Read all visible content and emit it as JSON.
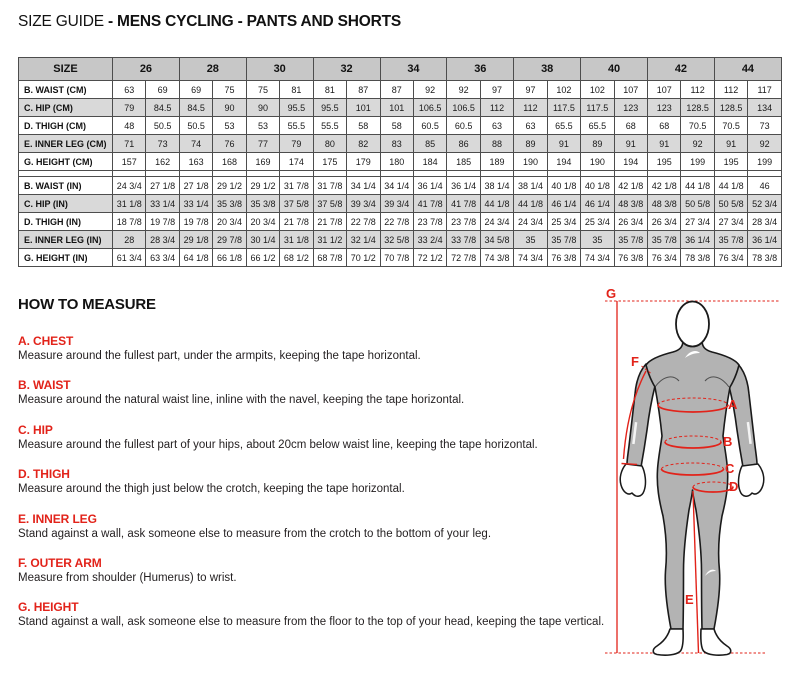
{
  "title": {
    "prefix": "SIZE GUIDE",
    "rest": " - MENS CYCLING - PANTS AND SHORTS"
  },
  "table": {
    "size_header_label": "SIZE",
    "sizes": [
      "26",
      "28",
      "30",
      "32",
      "34",
      "36",
      "38",
      "40",
      "42",
      "44"
    ],
    "cm_rows": [
      {
        "label": "B. WAIST (CM)",
        "values": [
          "63",
          "69",
          "69",
          "75",
          "75",
          "81",
          "81",
          "87",
          "87",
          "92",
          "92",
          "97",
          "97",
          "102",
          "102",
          "107",
          "107",
          "112",
          "112",
          "117"
        ]
      },
      {
        "label": "C. HIP (CM)",
        "values": [
          "79",
          "84.5",
          "84.5",
          "90",
          "90",
          "95.5",
          "95.5",
          "101",
          "101",
          "106.5",
          "106.5",
          "112",
          "112",
          "117.5",
          "117.5",
          "123",
          "123",
          "128.5",
          "128.5",
          "134"
        ]
      },
      {
        "label": "D. THIGH (CM)",
        "values": [
          "48",
          "50.5",
          "50.5",
          "53",
          "53",
          "55.5",
          "55.5",
          "58",
          "58",
          "60.5",
          "60.5",
          "63",
          "63",
          "65.5",
          "65.5",
          "68",
          "68",
          "70.5",
          "70.5",
          "73"
        ]
      },
      {
        "label": "E. INNER LEG (CM)",
        "values": [
          "71",
          "73",
          "74",
          "76",
          "77",
          "79",
          "80",
          "82",
          "83",
          "85",
          "86",
          "88",
          "89",
          "91",
          "89",
          "91",
          "91",
          "92",
          "91",
          "92"
        ]
      },
      {
        "label": "G. HEIGHT (CM)",
        "values": [
          "157",
          "162",
          "163",
          "168",
          "169",
          "174",
          "175",
          "179",
          "180",
          "184",
          "185",
          "189",
          "190",
          "194",
          "190",
          "194",
          "195",
          "199",
          "195",
          "199"
        ]
      }
    ],
    "in_rows": [
      {
        "label": "B. WAIST (IN)",
        "values": [
          "24 3/4",
          "27 1/8",
          "27 1/8",
          "29 1/2",
          "29 1/2",
          "31 7/8",
          "31 7/8",
          "34 1/4",
          "34 1/4",
          "36 1/4",
          "36 1/4",
          "38 1/4",
          "38 1/4",
          "40 1/8",
          "40 1/8",
          "42 1/8",
          "42 1/8",
          "44 1/8",
          "44 1/8",
          "46"
        ]
      },
      {
        "label": "C. HIP (IN)",
        "values": [
          "31 1/8",
          "33 1/4",
          "33 1/4",
          "35 3/8",
          "35 3/8",
          "37 5/8",
          "37 5/8",
          "39 3/4",
          "39 3/4",
          "41 7/8",
          "41 7/8",
          "44 1/8",
          "44 1/8",
          "46 1/4",
          "46 1/4",
          "48 3/8",
          "48 3/8",
          "50 5/8",
          "50 5/8",
          "52 3/4"
        ]
      },
      {
        "label": "D. THIGH (IN)",
        "values": [
          "18 7/8",
          "19 7/8",
          "19 7/8",
          "20 3/4",
          "20 3/4",
          "21 7/8",
          "21 7/8",
          "22 7/8",
          "22 7/8",
          "23 7/8",
          "23 7/8",
          "24 3/4",
          "24 3/4",
          "25 3/4",
          "25 3/4",
          "26 3/4",
          "26 3/4",
          "27 3/4",
          "27 3/4",
          "28 3/4"
        ]
      },
      {
        "label": "E. INNER LEG (IN)",
        "values": [
          "28",
          "28 3/4",
          "29 1/8",
          "29 7/8",
          "30 1/4",
          "31 1/8",
          "31 1/2",
          "32 1/4",
          "32 5/8",
          "33 2/4",
          "33 7/8",
          "34 5/8",
          "35",
          "35 7/8",
          "35",
          "35 7/8",
          "35 7/8",
          "36 1/4",
          "35 7/8",
          "36 1/4"
        ]
      },
      {
        "label": "G. HEIGHT (IN)",
        "values": [
          "61 3/4",
          "63 3/4",
          "64 1/8",
          "66 1/8",
          "66 1/2",
          "68 1/2",
          "68 7/8",
          "70 1/2",
          "70 7/8",
          "72 1/2",
          "72 7/8",
          "74 3/8",
          "74 3/4",
          "76 3/8",
          "74 3/4",
          "76 3/8",
          "76 3/4",
          "78 3/8",
          "76 3/4",
          "78 3/8"
        ]
      }
    ]
  },
  "how_to_measure": {
    "heading": "HOW TO MEASURE",
    "items": [
      {
        "key": "A. CHEST",
        "text": "Measure around the fullest part, under the armpits, keeping the tape horizontal."
      },
      {
        "key": "B. WAIST",
        "text": "Measure around the natural waist line, inline with the navel, keeping the tape horizontal."
      },
      {
        "key": "C. HIP",
        "text": "Measure around the fullest part of your hips, about 20cm below waist line, keeping the tape horizontal."
      },
      {
        "key": "D. THIGH",
        "text": "Measure around the thigh just below the crotch, keeping the tape horizontal."
      },
      {
        "key": "E. INNER LEG",
        "text": "Stand against a wall, ask someone else to measure from the crotch to the bottom of your leg."
      },
      {
        "key": "F. OUTER ARM",
        "text": "Measure from shoulder (Humerus) to wrist."
      },
      {
        "key": "G. HEIGHT",
        "text": "Stand against a wall, ask someone else to measure from the floor to the top of your head, keeping the tape vertical."
      }
    ]
  },
  "diagram": {
    "labels": [
      "A",
      "B",
      "C",
      "D",
      "E",
      "F",
      "G"
    ]
  },
  "colors": {
    "accent_red": "#e2231a",
    "table_header_bg": "#c7c7c7",
    "table_alt_row_bg": "#d9d9d9",
    "table_border": "#4d4d4d",
    "figure_fill": "#b3b3b3",
    "figure_outline": "#1a1a1a"
  }
}
